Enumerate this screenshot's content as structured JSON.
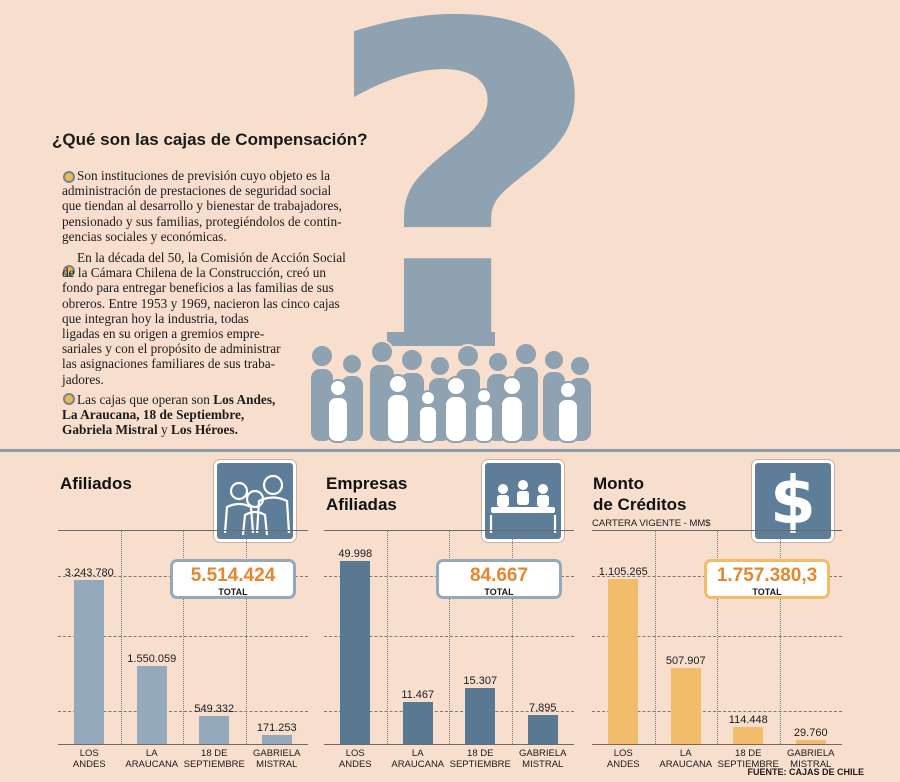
{
  "intro": {
    "title": "¿Qué son las cajas de Compensación?",
    "p1": [
      "Son instituciones de previsión cuyo objeto es la",
      "administración de prestaciones de seguridad social",
      "que tiendan al desarrollo y bienestar de trabajadores,",
      "pensionado y sus familias, protegiéndolos de contin-",
      "gencias sociales y económicas."
    ],
    "p2": [
      "En la década del 50, la Comisión de Acción Social",
      "de la Cámara Chilena de la Construcción, creó un",
      "fondo para entregar beneficios a las familias de sus",
      "obreros. Entre 1953 y 1969, nacieron las cinco cajas",
      "que integran hoy la industria, todas",
      "ligadas en su origen a gremios empre-",
      "sariales y con el propósito de administrar",
      "las asignaciones familiares de sus traba-",
      "jadores."
    ],
    "p3_lead": "Las cajas que operan son ",
    "p3_bold": "Los Andes, La Araucana, 18 de Septiembre, Gabriela Mistral",
    "p3_and": " y ",
    "p3_last": "Los Héroes."
  },
  "chart_data": [
    {
      "type": "bar",
      "title": "Afiliados",
      "categories": [
        "LOS ANDES",
        "LA ARAUCANA",
        "18 DE SEPTIEMBRE",
        "GABRIELA MISTRAL"
      ],
      "values": [
        3243780,
        1550059,
        549332,
        171253
      ],
      "labels": [
        "3.243.780",
        "1.550.059",
        "549.332",
        "171.253"
      ],
      "total": "5.514.424",
      "total_label": "TOTAL",
      "color": "#94a9bb",
      "total_color": "#e7862c",
      "ylim": [
        0,
        3700000
      ]
    },
    {
      "type": "bar",
      "title": "Empresas Afiliadas",
      "categories": [
        "LOS ANDES",
        "LA ARAUCANA",
        "18 DE SEPTIEMBRE",
        "GABRIELA MISTRAL"
      ],
      "values": [
        49998,
        11467,
        15307,
        7895
      ],
      "labels": [
        "49.998",
        "11.467",
        "15.307",
        "7.895"
      ],
      "total": "84.667",
      "total_label": "TOTAL",
      "color": "#597891",
      "total_color": "#e7862c",
      "ylim": [
        0,
        51000
      ]
    },
    {
      "type": "bar",
      "title": "Monto de Créditos",
      "subtitle": "CARTERA VIGENTE - MM$",
      "categories": [
        "LOS ANDES",
        "LA ARAUCANA",
        "18 DE SEPTIEMBRE",
        "GABRIELA MISTRAL"
      ],
      "values": [
        1105265,
        507907,
        114448,
        29760
      ],
      "labels": [
        "1.105.265",
        "507.907",
        "114.448",
        "29.760"
      ],
      "total": "1.757.380,3",
      "total_label": "TOTAL",
      "color": "#f2bd6b",
      "total_color": "#e7862c",
      "ylim": [
        0,
        1250000
      ]
    }
  ],
  "cat_lines": [
    [
      "LOS",
      "ANDES"
    ],
    [
      "LA",
      "ARAUCANA"
    ],
    [
      "18 DE",
      "SEPTIEMBRE"
    ],
    [
      "GABRIELA",
      "MISTRAL"
    ]
  ],
  "sections": {
    "afiliados": "Afiliados",
    "empresas_1": "Empresas",
    "empresas_2": "Afiliadas",
    "monto_1": "Monto",
    "monto_2": "de Créditos",
    "monto_sub": "CARTERA VIGENTE - MM$",
    "dollar": "$"
  },
  "source": "FUENTE: CAJAS DE CHILE",
  "colors": {
    "background": "#f8dfcd",
    "slate": "#8ea2b2",
    "icon_bg": "#5d7d98",
    "orange": "#e7862c"
  }
}
